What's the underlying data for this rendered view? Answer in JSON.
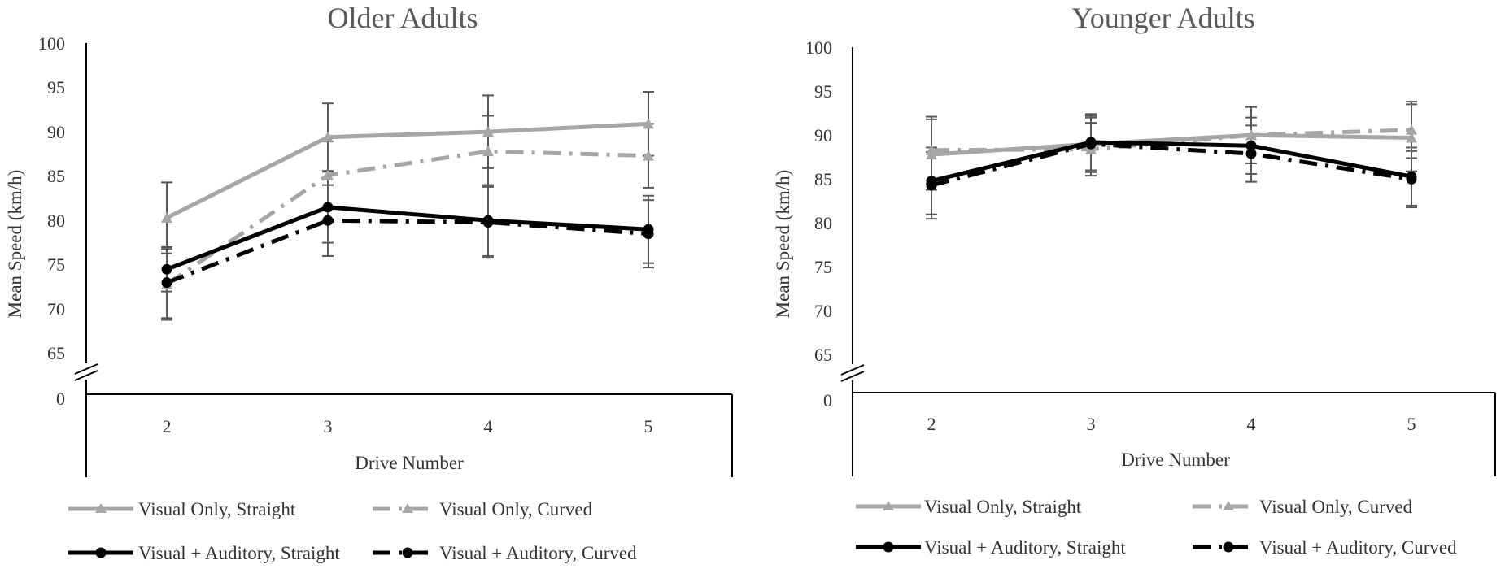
{
  "chart_data": [
    {
      "type": "line",
      "title": "Older Adults",
      "xlabel": "Drive Number",
      "ylabel": "Mean Speed (km/h)",
      "categories": [
        "2",
        "3",
        "4",
        "5"
      ],
      "yticks": [
        "100",
        "95",
        "90",
        "85",
        "80",
        "75",
        "70",
        "65"
      ],
      "ybreak_label": "0",
      "ylim": [
        65,
        100
      ],
      "series": [
        {
          "name": "Visual Only, Straight",
          "values": [
            80.3,
            89.4,
            90.0,
            90.9
          ],
          "err": [
            4.0,
            3.8,
            4.1,
            3.6
          ]
        },
        {
          "name": "Visual Only, Curved",
          "values": [
            72.8,
            85.1,
            87.8,
            87.3
          ],
          "err": [
            4.0,
            3.8,
            4.0,
            3.6
          ]
        },
        {
          "name": "Visual + Auditory, Straight",
          "values": [
            74.5,
            81.5,
            80.0,
            79.0
          ],
          "err": [
            2.5,
            4.0,
            4.0,
            3.8
          ]
        },
        {
          "name": "Visual + Auditory, Curved",
          "values": [
            73.0,
            80.0,
            79.8,
            78.5
          ],
          "err": [
            4.0,
            4.0,
            4.0,
            3.8
          ]
        }
      ]
    },
    {
      "type": "line",
      "title": "Younger Adults",
      "xlabel": "Drive Number",
      "ylabel": "Mean Speed (km/h)",
      "categories": [
        "2",
        "3",
        "4",
        "5"
      ],
      "yticks": [
        "100",
        "95",
        "90",
        "85",
        "80",
        "75",
        "70",
        "65"
      ],
      "ybreak_label": "0",
      "ylim": [
        65,
        100
      ],
      "series": [
        {
          "name": "Visual Only, Straight",
          "values": [
            87.8,
            89.0,
            90.0,
            89.7
          ],
          "err": [
            4.0,
            3.0,
            3.2,
            3.8
          ]
        },
        {
          "name": "Visual Only, Curved",
          "values": [
            88.3,
            88.4,
            90.0,
            90.6
          ],
          "err": [
            3.8,
            3.0,
            3.2,
            3.2
          ]
        },
        {
          "name": "Visual + Auditory, Straight",
          "values": [
            84.8,
            89.2,
            88.8,
            85.3
          ],
          "err": [
            3.8,
            3.2,
            3.2,
            3.3
          ]
        },
        {
          "name": "Visual + Auditory, Curved",
          "values": [
            84.3,
            89.0,
            87.9,
            85.0
          ],
          "err": [
            3.8,
            3.2,
            3.2,
            3.2
          ]
        }
      ]
    }
  ],
  "legend": {
    "items": [
      "Visual Only, Straight",
      "Visual Only, Curved",
      "Visual + Auditory, Straight",
      "Visual + Auditory, Curved"
    ]
  },
  "colors": {
    "gray": "#a6a6a6",
    "black": "#000000",
    "errorbar": "#595959",
    "axis": "#000000"
  }
}
